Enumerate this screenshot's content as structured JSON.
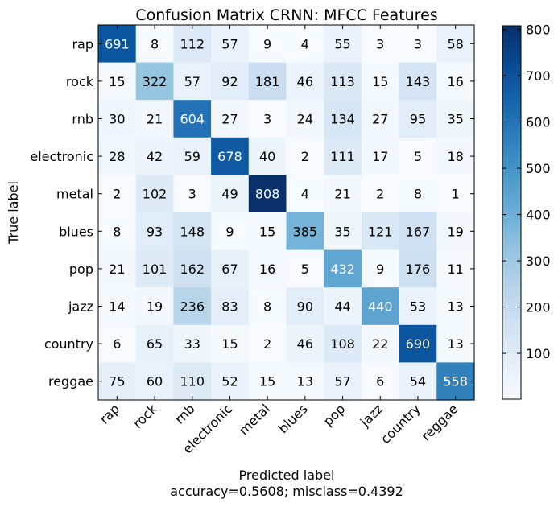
{
  "chart_data": {
    "type": "heatmap",
    "title": "Confusion Matrix CRNN: MFCC Features",
    "ylabel": "True label",
    "xlabel": "Predicted label",
    "xlabel_sub": "accuracy=0.5608; misclass=0.4392",
    "row_labels": [
      "rap",
      "rock",
      "rnb",
      "electronic",
      "metal",
      "blues",
      "pop",
      "jazz",
      "country",
      "reggae"
    ],
    "col_labels": [
      "rap",
      "rock",
      "rnb",
      "electronic",
      "metal",
      "blues",
      "pop",
      "jazz",
      "country",
      "reggae"
    ],
    "values": [
      [
        691,
        8,
        112,
        57,
        9,
        4,
        55,
        3,
        3,
        58
      ],
      [
        15,
        322,
        57,
        92,
        181,
        46,
        113,
        15,
        143,
        16
      ],
      [
        30,
        21,
        604,
        27,
        3,
        24,
        134,
        27,
        95,
        35
      ],
      [
        28,
        42,
        59,
        678,
        40,
        2,
        111,
        17,
        5,
        18
      ],
      [
        2,
        102,
        3,
        49,
        808,
        4,
        21,
        2,
        8,
        1
      ],
      [
        8,
        93,
        148,
        9,
        15,
        385,
        35,
        121,
        167,
        19
      ],
      [
        21,
        101,
        162,
        67,
        16,
        5,
        432,
        9,
        176,
        11
      ],
      [
        14,
        19,
        236,
        83,
        8,
        90,
        44,
        440,
        53,
        13
      ],
      [
        6,
        65,
        33,
        15,
        2,
        46,
        108,
        22,
        690,
        13
      ],
      [
        75,
        60,
        110,
        52,
        15,
        13,
        57,
        6,
        54,
        558
      ]
    ],
    "color_range": [
      1,
      808
    ],
    "colormap": "Blues",
    "colorbar_ticks": [
      100,
      200,
      300,
      400,
      500,
      600,
      700,
      800
    ]
  }
}
